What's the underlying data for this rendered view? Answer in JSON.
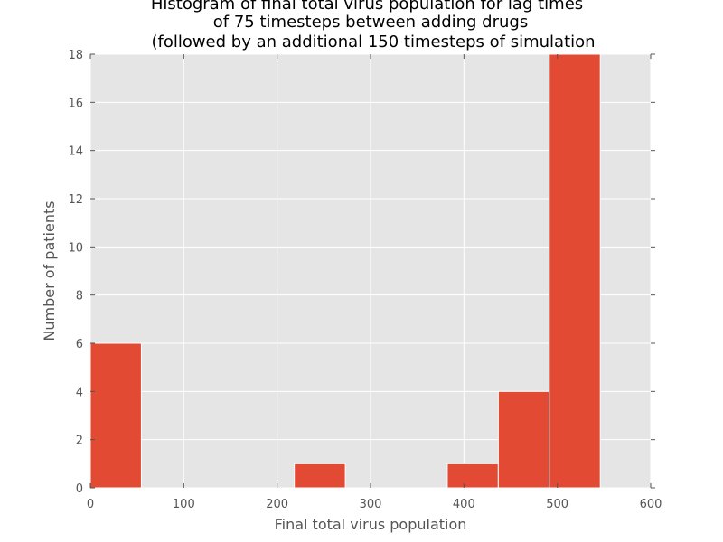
{
  "chart_data": {
    "type": "bar",
    "title_lines": [
      "Histogram of final total virus population for lag times",
      "of 75 timesteps between adding drugs",
      "(followed by an additional 150 timesteps of simulation"
    ],
    "xlabel": "Final total virus population",
    "ylabel": "Number of patients",
    "xlim": [
      0,
      600
    ],
    "ylim": [
      0,
      18
    ],
    "xticks": [
      0,
      100,
      200,
      300,
      400,
      500,
      600
    ],
    "yticks": [
      0,
      2,
      4,
      6,
      8,
      10,
      12,
      14,
      16,
      18
    ],
    "grid": true,
    "bins": [
      {
        "x0": 0,
        "x1": 54.6,
        "count": 6
      },
      {
        "x0": 54.6,
        "x1": 109.2,
        "count": 0
      },
      {
        "x0": 109.2,
        "x1": 163.8,
        "count": 0
      },
      {
        "x0": 163.8,
        "x1": 218.4,
        "count": 0
      },
      {
        "x0": 218.4,
        "x1": 273.0,
        "count": 1
      },
      {
        "x0": 273.0,
        "x1": 327.6,
        "count": 0
      },
      {
        "x0": 327.6,
        "x1": 382.2,
        "count": 0
      },
      {
        "x0": 382.2,
        "x1": 436.8,
        "count": 1
      },
      {
        "x0": 436.8,
        "x1": 491.4,
        "count": 4
      },
      {
        "x0": 491.4,
        "x1": 546.0,
        "count": 18
      }
    ],
    "colors": {
      "bar": "#E24A33",
      "background": "#E5E5E5",
      "grid": "#FFFFFF"
    }
  }
}
